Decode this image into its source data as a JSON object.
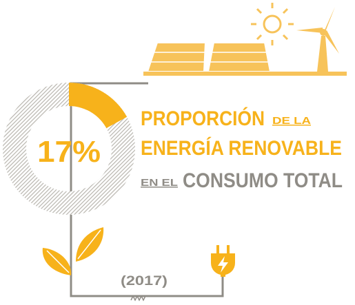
{
  "chart_data": {
    "type": "donut",
    "values": [
      17
    ],
    "value_labels": [
      "17%"
    ],
    "color": "#f7b21b",
    "title": {
      "line1": "PROPORCIÓN",
      "line1_small": "DE LA",
      "line2": "ENERGÍA RENOVABLE",
      "line3_small": "EN EL",
      "line3": "CONSUMO TOTAL"
    },
    "year": "(2017)"
  }
}
